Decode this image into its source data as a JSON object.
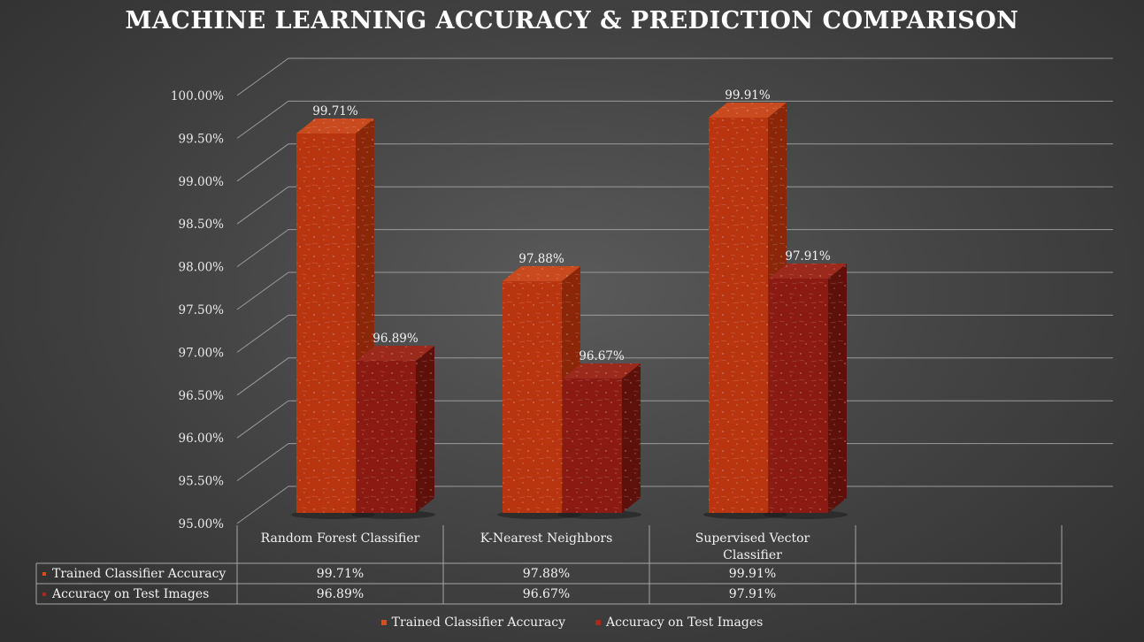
{
  "chart_data": {
    "type": "bar",
    "title": "MACHINE LEARNING ACCURACY & PREDICTION COMPARISON",
    "categories": [
      "Random Forest Classifier",
      "K-Nearest Neighbors",
      "Supervised Vector Classifier"
    ],
    "series": [
      {
        "name": "Trained Classifier Accuracy",
        "values": [
          99.71,
          97.88,
          99.91
        ],
        "labels": [
          "99.71%",
          "97.88%",
          "99.91%"
        ],
        "color": "#b83510"
      },
      {
        "name": "Accuracy on Test Images",
        "values": [
          96.89,
          96.67,
          97.91
        ],
        "labels": [
          "96.89%",
          "96.67%",
          "97.91%"
        ],
        "color": "#8a1a12"
      }
    ],
    "ylim": [
      95,
      100
    ],
    "yticks": [
      "95.00%",
      "95.50%",
      "96.00%",
      "96.50%",
      "97.00%",
      "97.50%",
      "98.00%",
      "98.50%",
      "99.00%",
      "99.50%",
      "100.00%"
    ],
    "grid": true,
    "data_table": true,
    "legend_position": "bottom",
    "three_d": true
  }
}
